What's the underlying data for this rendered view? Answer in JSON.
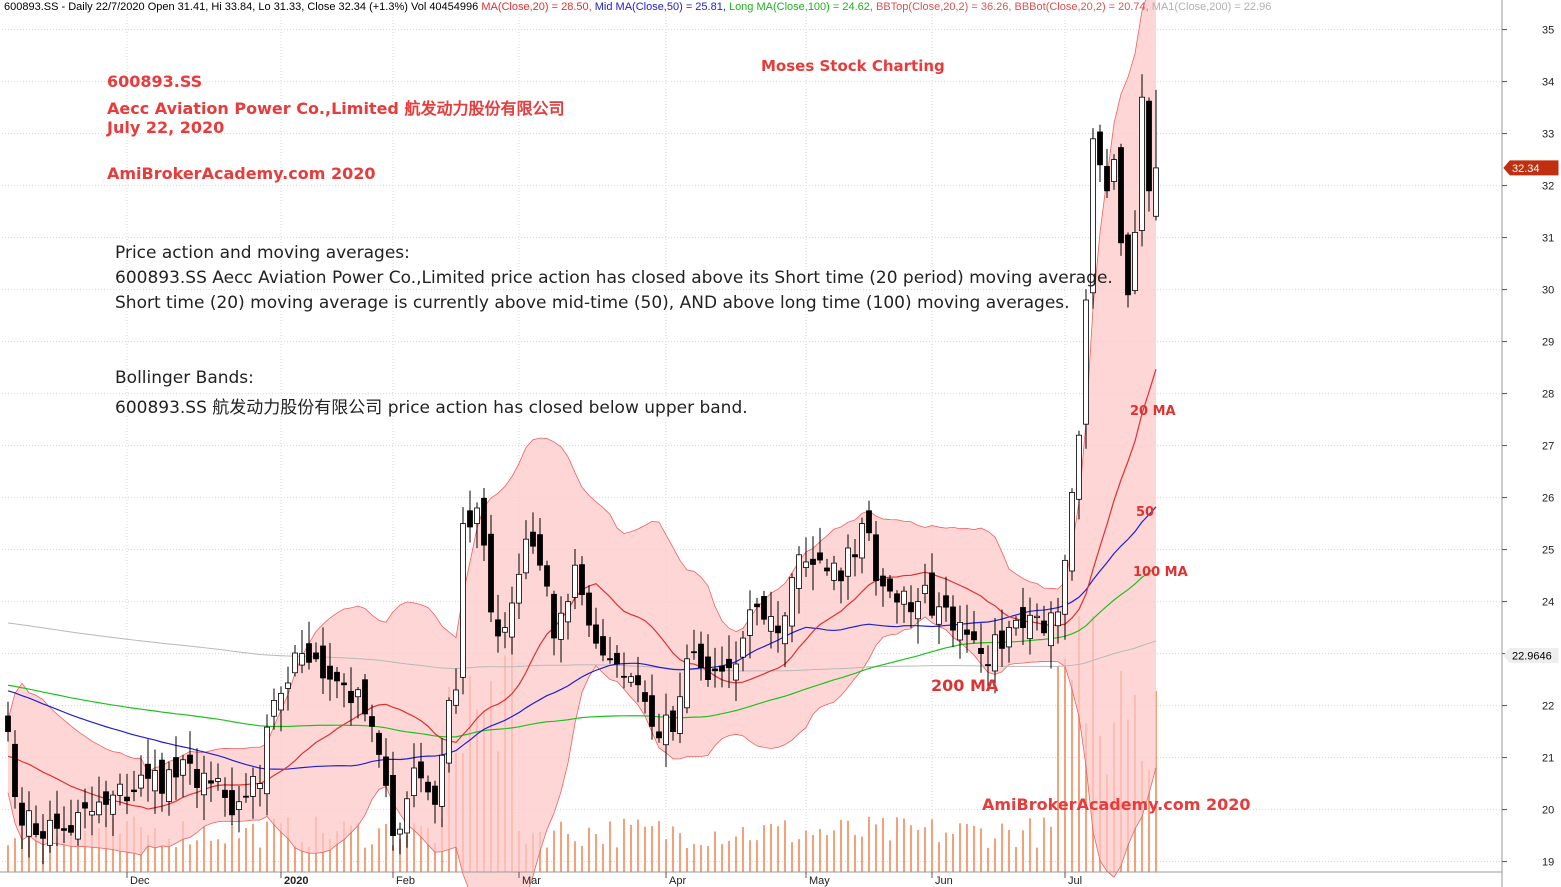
{
  "header": {
    "title": "600893.SS - Daily 22/7/2020 Open 31.41, Hi 33.84, Lo 31.33, Close 32.34 (+1.3%) Vol 40454996",
    "items": [
      {
        "text": " MA(Close,20) = 28.50,",
        "color": "#e03030"
      },
      {
        "text": " Mid MA(Close,50) = 25.81,",
        "color": "#2020d0"
      },
      {
        "text": " Long MA(Close,100) = 24.62,",
        "color": "#20b020"
      },
      {
        "text": " BBTop(Close,20,2) = 36.26,",
        "color": "#e05050"
      },
      {
        "text": " BBBot(Close,20,2) = 20.74,",
        "color": "#e05050"
      },
      {
        "text": " MA1(Close,200) = 22.96",
        "color": "#b0b0b0"
      }
    ]
  },
  "annotations": {
    "ticker": "600893.SS",
    "company": "Aecc Aviation Power Co.,Limited 航发动力股份有限公司",
    "date": "July 22, 2020",
    "site_top": "AmiBrokerAcademy.com  2020",
    "brand": "Moses Stock Charting",
    "site_bottom": "AmiBrokerAcademy.com  2020",
    "pa_title": "Price action and moving averages:",
    "pa_line1": "600893.SS Aecc Aviation Power Co.,Limited price action has closed above its Short time (20 period) moving average.",
    "pa_line2": "Short time (20) moving average is currently above mid-time (50), AND above long time (100) moving averages.",
    "bb_title": "Bollinger Bands:",
    "bb_line1": "600893.SS 航发动力股份有限公司 price action has closed below upper band.",
    "ma20_label": "20 MA",
    "ma50_label": "50",
    "ma100_label": "100 MA",
    "ma200_label": "200 MA"
  },
  "chart_data": {
    "type": "candlestick",
    "ylim": [
      18.8,
      35.3
    ],
    "yticks": [
      19,
      20,
      21,
      22,
      23,
      24,
      25,
      26,
      27,
      28,
      29,
      30,
      31,
      32,
      33,
      34,
      35
    ],
    "x_labels": [
      {
        "label": "Dec",
        "index": 17
      },
      {
        "label": "2020",
        "index": 39
      },
      {
        "label": "Feb",
        "index": 55
      },
      {
        "label": "Mar",
        "index": 73
      },
      {
        "label": "Apr",
        "index": 94
      },
      {
        "label": "May",
        "index": 114
      },
      {
        "label": "Jun",
        "index": 132
      },
      {
        "label": "Jul",
        "index": 151
      }
    ],
    "last_close_tag": "32.34",
    "ma200_tag": "22.9646",
    "colors": {
      "ma20": "#e03030",
      "ma50": "#2020d0",
      "ma100": "#20c020",
      "ma200": "#b8b8b8",
      "band_fill": "#ffc8c8",
      "band_line": "#f06060",
      "volume": "#f4a07a",
      "tag_red": "#c03010"
    },
    "checkpoints": [
      {
        "index": 0,
        "price": 21.5
      },
      {
        "index": 2,
        "price": 19.7
      },
      {
        "index": 8,
        "price": 19.6
      },
      {
        "index": 14,
        "price": 20.1
      },
      {
        "index": 20,
        "price": 20.6
      },
      {
        "index": 28,
        "price": 20.7
      },
      {
        "index": 32,
        "price": 19.9
      },
      {
        "index": 36,
        "price": 20.5
      },
      {
        "index": 38,
        "price": 22.1
      },
      {
        "index": 42,
        "price": 23.0
      },
      {
        "index": 44,
        "price": 22.9
      },
      {
        "index": 48,
        "price": 22.4
      },
      {
        "index": 52,
        "price": 21.6
      },
      {
        "index": 55,
        "price": 19.5
      },
      {
        "index": 58,
        "price": 20.8
      },
      {
        "index": 61,
        "price": 20.1
      },
      {
        "index": 63,
        "price": 22.1
      },
      {
        "index": 64,
        "price": 22.3
      },
      {
        "index": 65,
        "price": 25.5
      },
      {
        "index": 67,
        "price": 25.8
      },
      {
        "index": 69,
        "price": 23.8
      },
      {
        "index": 71,
        "price": 23.5
      },
      {
        "index": 74,
        "price": 25.2
      },
      {
        "index": 76,
        "price": 24.7
      },
      {
        "index": 78,
        "price": 23.3
      },
      {
        "index": 81,
        "price": 24.7
      },
      {
        "index": 84,
        "price": 23.2
      },
      {
        "index": 87,
        "price": 22.8
      },
      {
        "index": 90,
        "price": 22.4
      },
      {
        "index": 92,
        "price": 21.6
      },
      {
        "index": 95,
        "price": 21.5
      },
      {
        "index": 97,
        "price": 22.9
      },
      {
        "index": 100,
        "price": 22.5
      },
      {
        "index": 104,
        "price": 22.8
      },
      {
        "index": 107,
        "price": 23.9
      },
      {
        "index": 110,
        "price": 23.4
      },
      {
        "index": 113,
        "price": 24.9
      },
      {
        "index": 116,
        "price": 24.8
      },
      {
        "index": 119,
        "price": 24.4
      },
      {
        "index": 122,
        "price": 25.5
      },
      {
        "index": 125,
        "price": 24.3
      },
      {
        "index": 128,
        "price": 24.2
      },
      {
        "index": 130,
        "price": 24.0
      },
      {
        "index": 133,
        "price": 23.9
      },
      {
        "index": 136,
        "price": 23.6
      },
      {
        "index": 139,
        "price": 23.0
      },
      {
        "index": 142,
        "price": 23.1
      },
      {
        "index": 145,
        "price": 23.5
      },
      {
        "index": 148,
        "price": 23.4
      },
      {
        "index": 150,
        "price": 23.8
      },
      {
        "index": 152,
        "price": 26.1
      },
      {
        "index": 153,
        "price": 27.2
      },
      {
        "index": 154,
        "price": 29.8
      },
      {
        "index": 155,
        "price": 32.9
      },
      {
        "index": 156,
        "price": 32.4
      },
      {
        "index": 157,
        "price": 31.9
      },
      {
        "index": 158,
        "price": 32.5
      },
      {
        "index": 159,
        "price": 30.9
      },
      {
        "index": 160,
        "price": 29.9
      },
      {
        "index": 161,
        "price": 31.1
      },
      {
        "index": 162,
        "price": 33.7
      },
      {
        "index": 163,
        "price": 31.9
      },
      {
        "index": 164,
        "price": 32.34
      }
    ],
    "volume_hint": "volume bars spike around the late-Feb rally and early-July breakout"
  }
}
